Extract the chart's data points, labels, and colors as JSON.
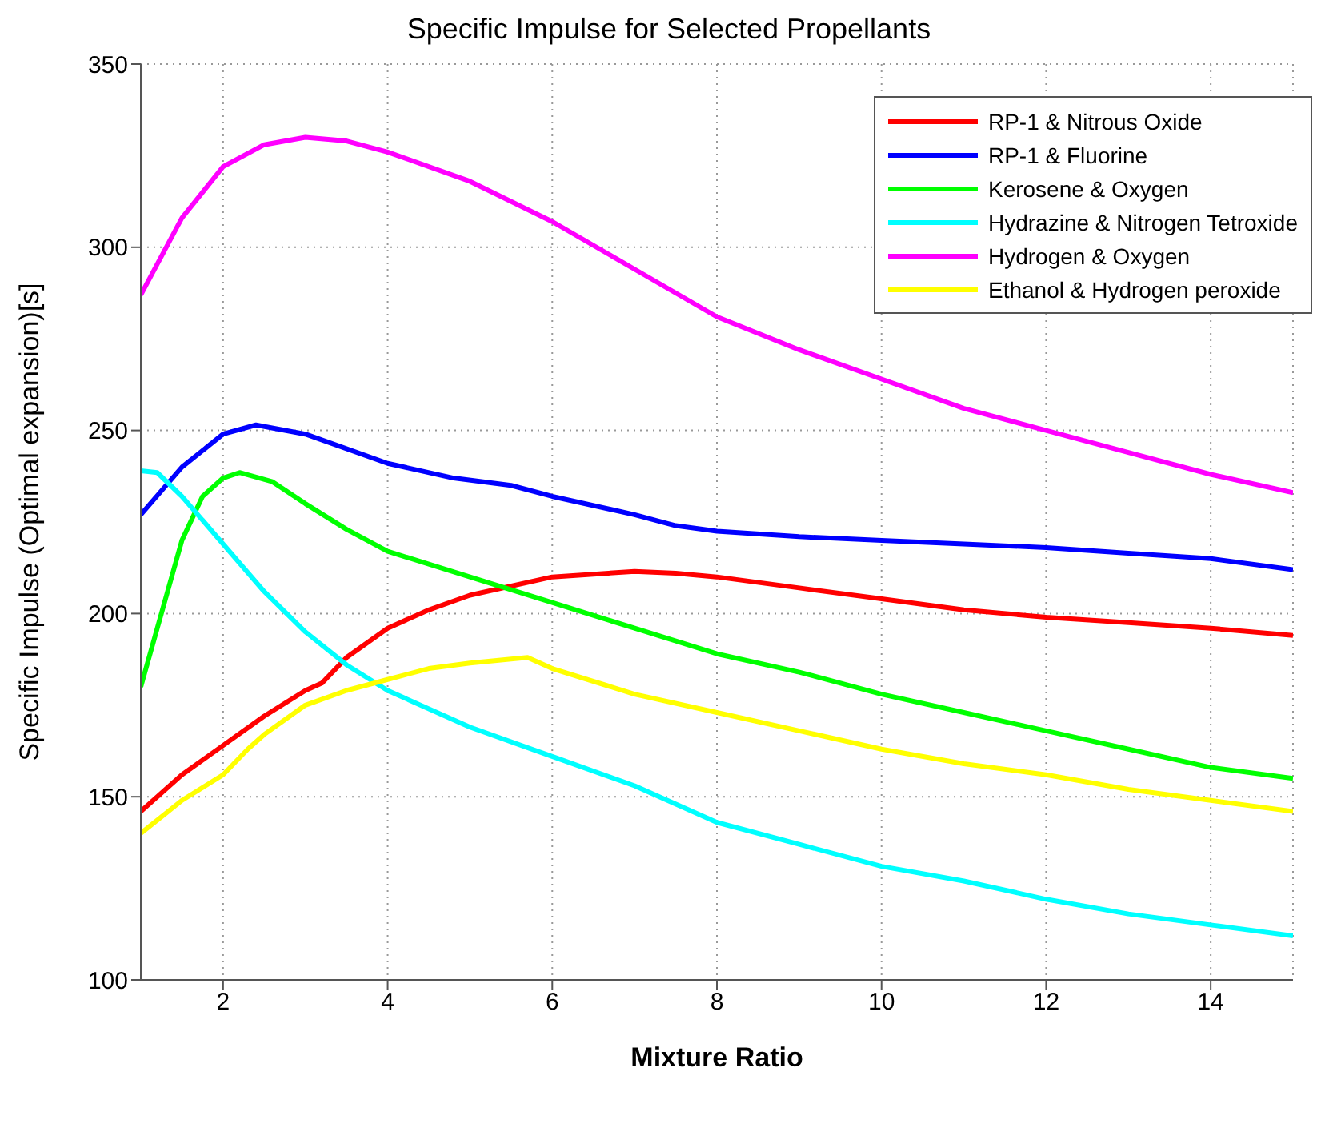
{
  "chart_data": {
    "type": "line",
    "title": "Specific Impulse for Selected Propellants",
    "xlabel": "Mixture Ratio",
    "ylabel": "Specific Impulse (Optimal expansion)[s]",
    "xlim": [
      1,
      15
    ],
    "xticks": [
      2,
      4,
      6,
      8,
      10,
      12,
      14
    ],
    "ylim": [
      100,
      350
    ],
    "yticks": [
      100,
      150,
      200,
      250,
      300,
      350
    ],
    "grid": true,
    "legend": "top right",
    "marker": "none",
    "line_style": "solid",
    "series": [
      {
        "name": "RP-1 & Nitrous Oxide",
        "color": "#ff0000",
        "x": [
          1,
          1.5,
          2,
          2.5,
          3,
          3.2,
          3.5,
          4,
          4.5,
          5,
          6,
          7,
          7.5,
          8,
          9,
          10,
          11,
          12,
          13,
          14,
          15
        ],
        "values": [
          146,
          156,
          164,
          172,
          179,
          181,
          188,
          196,
          201,
          205,
          210,
          211.5,
          211,
          210,
          207,
          204,
          201,
          199,
          197.5,
          196,
          194
        ]
      },
      {
        "name": "RP-1 & Fluorine",
        "color": "#0000ff",
        "x": [
          1,
          1.5,
          2,
          2.4,
          3,
          4,
          4.8,
          5.5,
          6,
          7,
          7.5,
          8,
          9,
          10,
          11,
          12,
          13,
          14,
          15
        ],
        "values": [
          227,
          240,
          249,
          251.5,
          249,
          241,
          237,
          235,
          232,
          227,
          224,
          222.5,
          221,
          220,
          219,
          218,
          216.5,
          215,
          212
        ]
      },
      {
        "name": "Kerosene & Oxygen",
        "color": "#00ff00",
        "x": [
          1,
          1.25,
          1.5,
          1.75,
          2,
          2.2,
          2.6,
          3,
          3.5,
          4,
          5,
          6,
          7,
          8,
          9,
          10,
          11,
          12,
          13,
          14,
          15
        ],
        "values": [
          180,
          200,
          220,
          232,
          237,
          238.5,
          236,
          230,
          223,
          217,
          210,
          203,
          196,
          189,
          184,
          178,
          173,
          168,
          163,
          158,
          155
        ]
      },
      {
        "name": "Hydrazine & Nitrogen Tetroxide",
        "color": "#00ffff",
        "x": [
          1,
          1.2,
          1.5,
          2,
          2.5,
          3,
          3.5,
          4,
          5,
          6,
          7,
          8,
          9,
          10,
          11,
          12,
          13,
          14,
          15
        ],
        "values": [
          239,
          238.5,
          232,
          219,
          206,
          195,
          186,
          179,
          169,
          161,
          153,
          143,
          137,
          131,
          127,
          122,
          118,
          115,
          112
        ]
      },
      {
        "name": "Hydrogen & Oxygen",
        "color": "#ff00ff",
        "x": [
          1,
          1.5,
          2,
          2.5,
          3,
          3.5,
          4,
          5,
          6,
          7,
          8,
          9,
          10,
          11,
          12,
          13,
          14,
          15
        ],
        "values": [
          287,
          308,
          322,
          328,
          330,
          329,
          326,
          318,
          307,
          294,
          281,
          272,
          264,
          256,
          250,
          244,
          238,
          233
        ]
      },
      {
        "name": "Ethanol & Hydrogen peroxide",
        "color": "#ffff00",
        "x": [
          1,
          1.5,
          2,
          2.3,
          2.5,
          3,
          3.5,
          4,
          4.5,
          5,
          5.7,
          6,
          7,
          8,
          9,
          10,
          11,
          12,
          13,
          14,
          15
        ],
        "values": [
          140,
          149,
          156,
          163,
          167,
          175,
          179,
          182,
          185,
          186.5,
          188,
          185,
          178,
          173,
          168,
          163,
          159,
          156,
          152,
          149,
          146
        ]
      }
    ]
  }
}
